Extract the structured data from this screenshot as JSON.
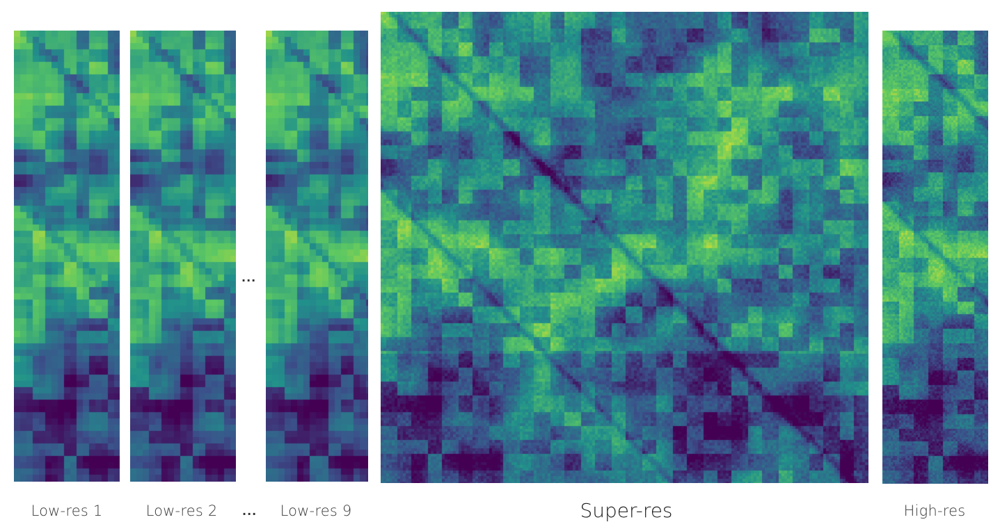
{
  "panels": {
    "lowres1": {
      "label": "Low-res 1"
    },
    "lowres2": {
      "label": "Low-res 2"
    },
    "lowres9": {
      "label": "Low-res 9"
    },
    "superres": {
      "label": "Super-res"
    },
    "highres": {
      "label": "High-res"
    }
  },
  "ellipsis": "...",
  "colormap": [
    "#440154",
    "#3b528b",
    "#21918c",
    "#5ec962",
    "#fde725"
  ]
}
